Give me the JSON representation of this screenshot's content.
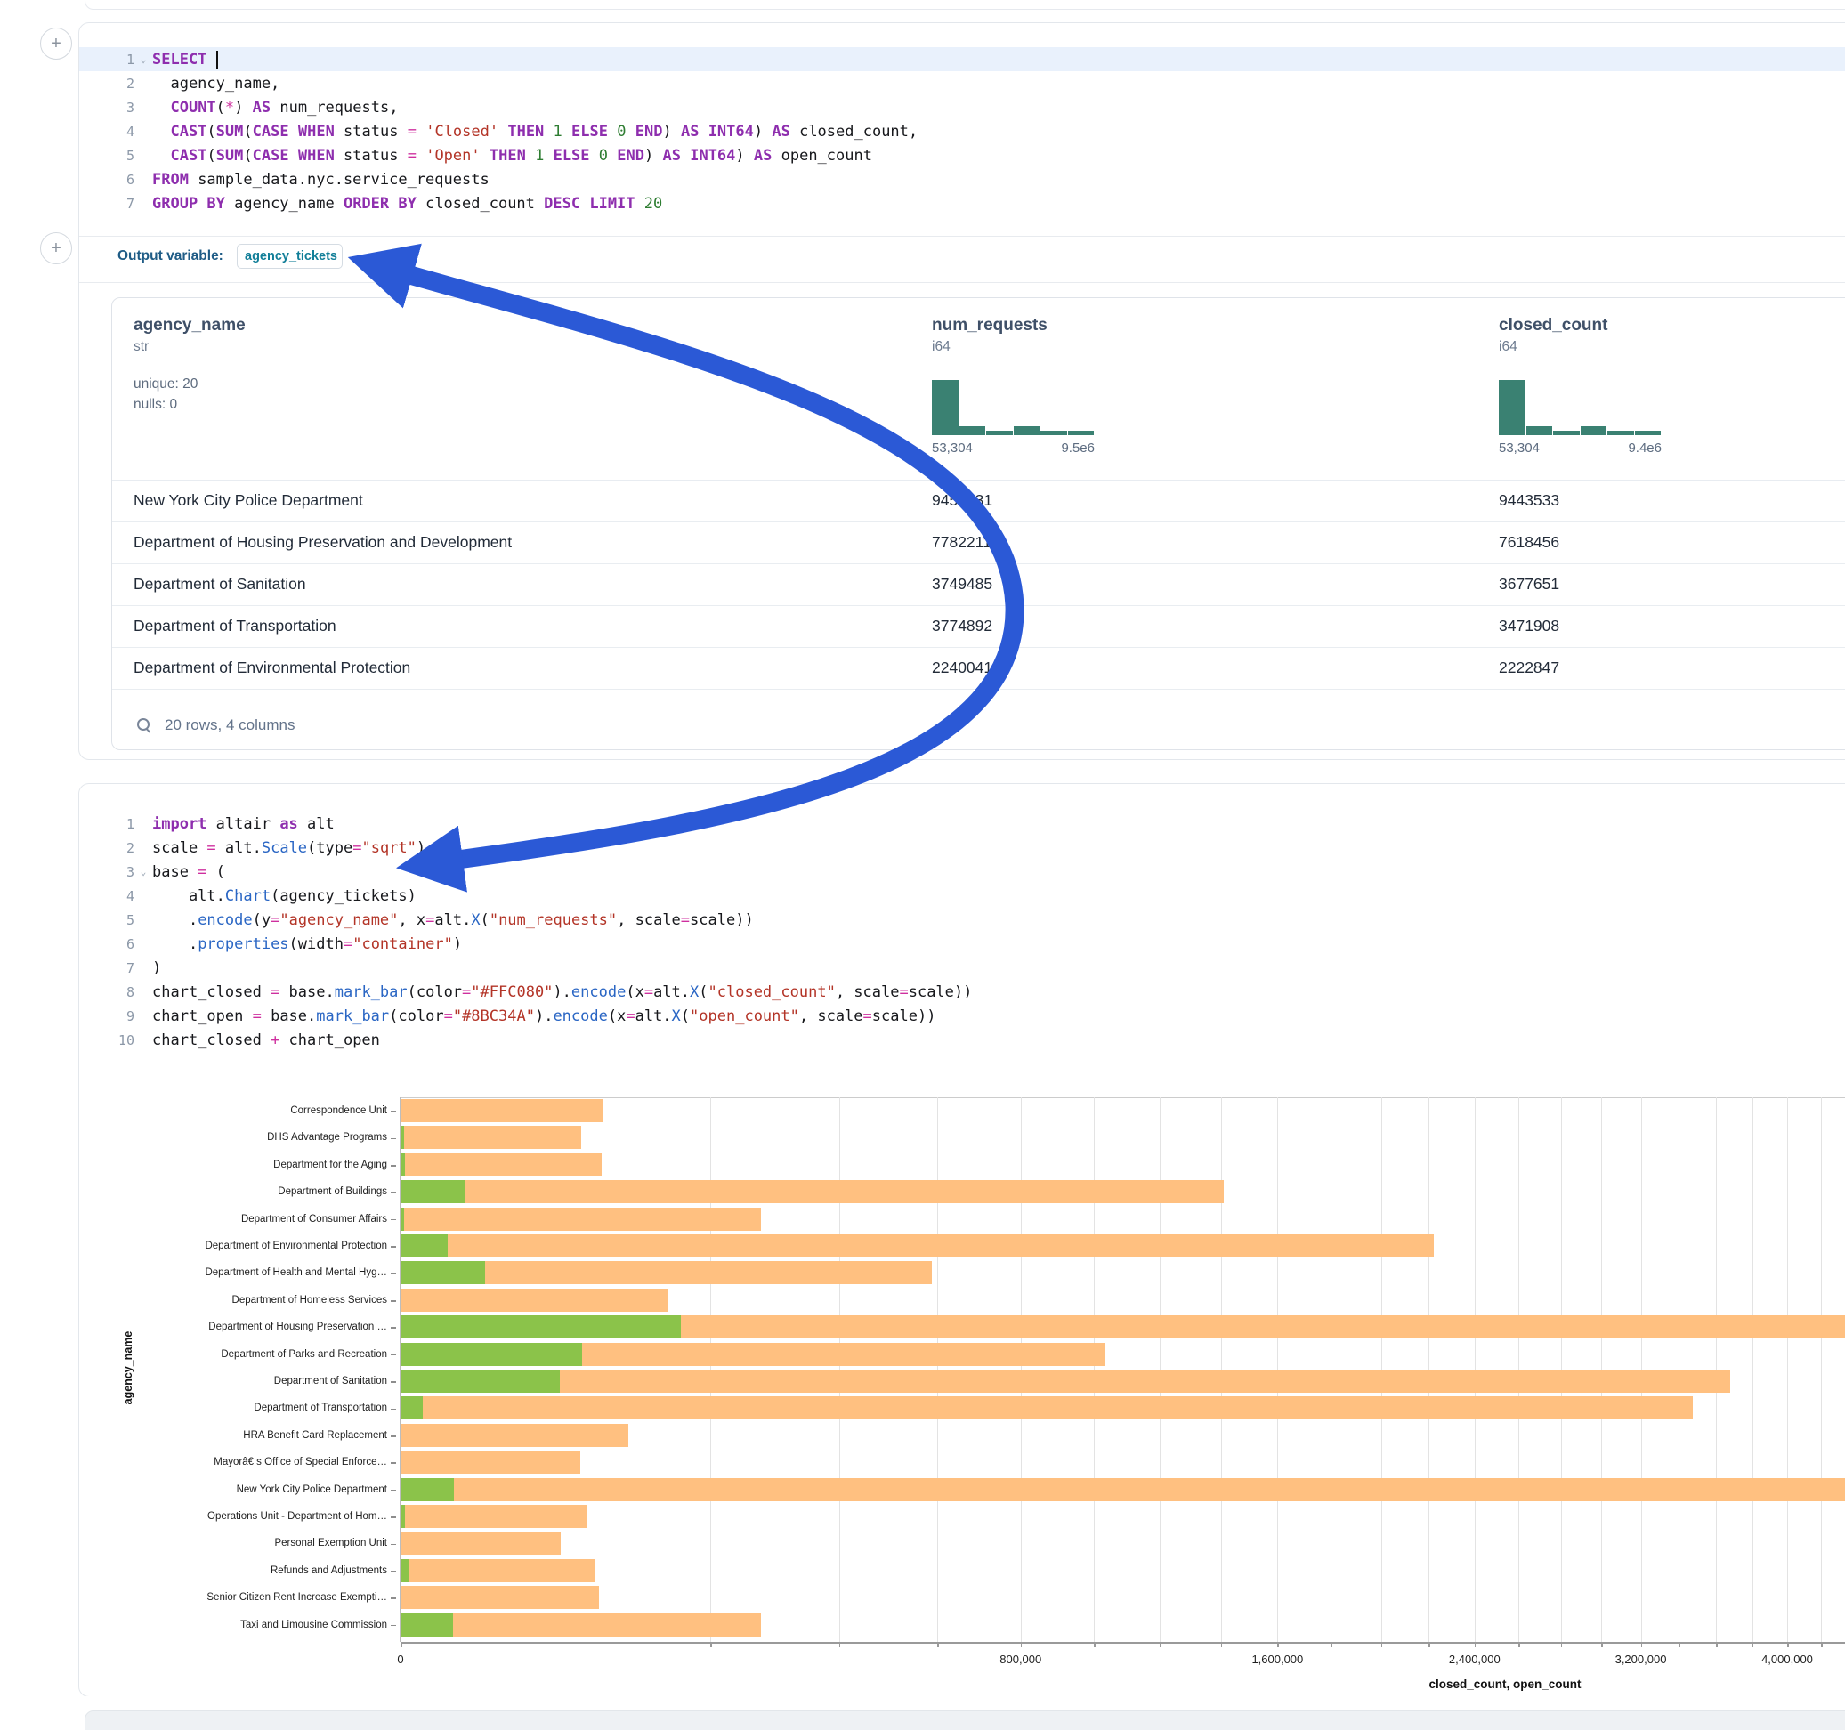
{
  "icons": {
    "plus": "+",
    "fold_chevron": "⌄",
    "search": "magnifier"
  },
  "annotation": {
    "arrow_color": "#2b59d6"
  },
  "sql_cell": {
    "output_variable": {
      "label": "Output variable:",
      "value": "agency_tickets"
    },
    "lines": [
      {
        "n": 1,
        "active": true,
        "fold": true,
        "tokens": [
          [
            "k",
            "SELECT"
          ],
          [
            "d",
            " "
          ],
          [
            "cur",
            ""
          ]
        ]
      },
      {
        "n": 2,
        "tokens": [
          [
            "d",
            "  agency_name,"
          ]
        ]
      },
      {
        "n": 3,
        "tokens": [
          [
            "d",
            "  "
          ],
          [
            "k",
            "COUNT"
          ],
          [
            "d",
            "("
          ],
          [
            "o",
            "*"
          ],
          [
            "d",
            ") "
          ],
          [
            "k",
            "AS"
          ],
          [
            "d",
            " num_requests,"
          ]
        ]
      },
      {
        "n": 4,
        "tokens": [
          [
            "d",
            "  "
          ],
          [
            "k",
            "CAST"
          ],
          [
            "d",
            "("
          ],
          [
            "k",
            "SUM"
          ],
          [
            "d",
            "("
          ],
          [
            "k",
            "CASE"
          ],
          [
            "d",
            " "
          ],
          [
            "k",
            "WHEN"
          ],
          [
            "d",
            " status "
          ],
          [
            "o",
            "="
          ],
          [
            "d",
            " "
          ],
          [
            "s",
            "'Closed'"
          ],
          [
            "d",
            " "
          ],
          [
            "k",
            "THEN"
          ],
          [
            "d",
            " "
          ],
          [
            "n",
            "1"
          ],
          [
            "d",
            " "
          ],
          [
            "k",
            "ELSE"
          ],
          [
            "d",
            " "
          ],
          [
            "n",
            "0"
          ],
          [
            "d",
            " "
          ],
          [
            "k",
            "END"
          ],
          [
            "d",
            ") "
          ],
          [
            "k",
            "AS"
          ],
          [
            "d",
            " "
          ],
          [
            "k",
            "INT64"
          ],
          [
            "d",
            ") "
          ],
          [
            "k",
            "AS"
          ],
          [
            "d",
            " closed_count,"
          ]
        ]
      },
      {
        "n": 5,
        "tokens": [
          [
            "d",
            "  "
          ],
          [
            "k",
            "CAST"
          ],
          [
            "d",
            "("
          ],
          [
            "k",
            "SUM"
          ],
          [
            "d",
            "("
          ],
          [
            "k",
            "CASE"
          ],
          [
            "d",
            " "
          ],
          [
            "k",
            "WHEN"
          ],
          [
            "d",
            " status "
          ],
          [
            "o",
            "="
          ],
          [
            "d",
            " "
          ],
          [
            "s",
            "'Open'"
          ],
          [
            "d",
            " "
          ],
          [
            "k",
            "THEN"
          ],
          [
            "d",
            " "
          ],
          [
            "n",
            "1"
          ],
          [
            "d",
            " "
          ],
          [
            "k",
            "ELSE"
          ],
          [
            "d",
            " "
          ],
          [
            "n",
            "0"
          ],
          [
            "d",
            " "
          ],
          [
            "k",
            "END"
          ],
          [
            "d",
            ") "
          ],
          [
            "k",
            "AS"
          ],
          [
            "d",
            " "
          ],
          [
            "k",
            "INT64"
          ],
          [
            "d",
            ") "
          ],
          [
            "k",
            "AS"
          ],
          [
            "d",
            " open_count"
          ]
        ]
      },
      {
        "n": 6,
        "tokens": [
          [
            "k",
            "FROM"
          ],
          [
            "d",
            " sample_data.nyc.service_requests"
          ]
        ]
      },
      {
        "n": 7,
        "tokens": [
          [
            "k",
            "GROUP BY"
          ],
          [
            "d",
            " agency_name "
          ],
          [
            "k",
            "ORDER BY"
          ],
          [
            "d",
            " closed_count "
          ],
          [
            "k",
            "DESC"
          ],
          [
            "d",
            " "
          ],
          [
            "k",
            "LIMIT"
          ],
          [
            "d",
            " "
          ],
          [
            "n",
            "20"
          ]
        ]
      }
    ]
  },
  "table": {
    "columns": [
      {
        "name": "agency_name",
        "type": "str",
        "stats": [
          "unique: 20",
          "nulls: 0"
        ]
      },
      {
        "name": "num_requests",
        "type": "i64",
        "hist": [
          13,
          2,
          1,
          2,
          1,
          1
        ],
        "range_min": "53,304",
        "range_max": "9.5e6"
      },
      {
        "name": "closed_count",
        "type": "i64",
        "hist": [
          13,
          2,
          1,
          2,
          1,
          1
        ],
        "range_min": "53,304",
        "range_max": "9.4e6"
      }
    ],
    "rows": [
      {
        "agency_name": "New York City Police Department",
        "num_requests": "9453131",
        "closed_count": "9443533"
      },
      {
        "agency_name": "Department of Housing Preservation and Development",
        "num_requests": "7782211",
        "closed_count": "7618456"
      },
      {
        "agency_name": "Department of Sanitation",
        "num_requests": "3749485",
        "closed_count": "3677651"
      },
      {
        "agency_name": "Department of Transportation",
        "num_requests": "3774892",
        "closed_count": "3471908"
      },
      {
        "agency_name": "Department of Environmental Protection",
        "num_requests": "2240041",
        "closed_count": "2222847"
      }
    ],
    "footer": "20 rows, 4 columns"
  },
  "python_cell": {
    "lines": [
      {
        "n": 1,
        "tokens": [
          [
            "k",
            "import"
          ],
          [
            "d",
            " altair "
          ],
          [
            "k",
            "as"
          ],
          [
            "d",
            " alt"
          ]
        ]
      },
      {
        "n": 2,
        "tokens": [
          [
            "d",
            "scale "
          ],
          [
            "o",
            "="
          ],
          [
            "d",
            " alt."
          ],
          [
            "f",
            "Scale"
          ],
          [
            "d",
            "(type"
          ],
          [
            "o",
            "="
          ],
          [
            "s",
            "\"sqrt\""
          ],
          [
            "d",
            ")"
          ]
        ]
      },
      {
        "n": 3,
        "fold": true,
        "tokens": [
          [
            "d",
            "base "
          ],
          [
            "o",
            "="
          ],
          [
            "d",
            " ("
          ]
        ]
      },
      {
        "n": 4,
        "tokens": [
          [
            "d",
            "    alt."
          ],
          [
            "f",
            "Chart"
          ],
          [
            "d",
            "(agency_tickets)"
          ]
        ]
      },
      {
        "n": 5,
        "tokens": [
          [
            "d",
            "    ."
          ],
          [
            "f",
            "encode"
          ],
          [
            "d",
            "(y"
          ],
          [
            "o",
            "="
          ],
          [
            "s",
            "\"agency_name\""
          ],
          [
            "d",
            ", x"
          ],
          [
            "o",
            "="
          ],
          [
            "d",
            "alt."
          ],
          [
            "f",
            "X"
          ],
          [
            "d",
            "("
          ],
          [
            "s",
            "\"num_requests\""
          ],
          [
            "d",
            ", scale"
          ],
          [
            "o",
            "="
          ],
          [
            "d",
            "scale))"
          ]
        ]
      },
      {
        "n": 6,
        "tokens": [
          [
            "d",
            "    ."
          ],
          [
            "f",
            "properties"
          ],
          [
            "d",
            "(width"
          ],
          [
            "o",
            "="
          ],
          [
            "s",
            "\"container\""
          ],
          [
            "d",
            ")"
          ]
        ]
      },
      {
        "n": 7,
        "tokens": [
          [
            "d",
            ")"
          ]
        ]
      },
      {
        "n": 8,
        "tokens": [
          [
            "d",
            "chart_closed "
          ],
          [
            "o",
            "="
          ],
          [
            "d",
            " base."
          ],
          [
            "f",
            "mark_bar"
          ],
          [
            "d",
            "(color"
          ],
          [
            "o",
            "="
          ],
          [
            "s",
            "\"#FFC080\""
          ],
          [
            "d",
            ")."
          ],
          [
            "f",
            "encode"
          ],
          [
            "d",
            "(x"
          ],
          [
            "o",
            "="
          ],
          [
            "d",
            "alt."
          ],
          [
            "f",
            "X"
          ],
          [
            "d",
            "("
          ],
          [
            "s",
            "\"closed_count\""
          ],
          [
            "d",
            ", scale"
          ],
          [
            "o",
            "="
          ],
          [
            "d",
            "scale))"
          ]
        ]
      },
      {
        "n": 9,
        "tokens": [
          [
            "d",
            "chart_open "
          ],
          [
            "o",
            "="
          ],
          [
            "d",
            " base."
          ],
          [
            "f",
            "mark_bar"
          ],
          [
            "d",
            "(color"
          ],
          [
            "o",
            "="
          ],
          [
            "s",
            "\"#8BC34A\""
          ],
          [
            "d",
            ")."
          ],
          [
            "f",
            "encode"
          ],
          [
            "d",
            "(x"
          ],
          [
            "o",
            "="
          ],
          [
            "d",
            "alt."
          ],
          [
            "f",
            "X"
          ],
          [
            "d",
            "("
          ],
          [
            "s",
            "\"open_count\""
          ],
          [
            "d",
            ", scale"
          ],
          [
            "o",
            "="
          ],
          [
            "d",
            "scale))"
          ]
        ]
      },
      {
        "n": 10,
        "tokens": [
          [
            "d",
            "chart_closed "
          ],
          [
            "o",
            "+"
          ],
          [
            "d",
            " chart_open"
          ]
        ]
      }
    ]
  },
  "chart_data": {
    "type": "bar",
    "orientation": "horizontal",
    "layered": true,
    "x_scale": "sqrt",
    "grid": true,
    "gridline_step": 200000,
    "xlabel": "closed_count, open_count",
    "ylabel": "agency_name",
    "x_ticks": [
      0,
      800000,
      1600000,
      2400000,
      3200000,
      4000000
    ],
    "series": [
      {
        "name": "closed_count",
        "color": "#FFC080"
      },
      {
        "name": "open_count",
        "color": "#8BC34A"
      }
    ],
    "categories": [
      "Correspondence Unit",
      "DHS Advantage Programs",
      "Department for the Aging",
      "Department of Buildings",
      "Department of Consumer Affairs",
      "Department of Environmental Protection",
      "Department of Health and Mental Hyg…",
      "Department of Homeless Services",
      "Department of Housing Preservation …",
      "Department of Parks and Recreation",
      "Department of Sanitation",
      "Department of Transportation",
      "HRA Benefit Card Replacement",
      "Mayorâ€  s Office of Special Enforce…",
      "New York City Police Department",
      "Operations Unit - Department of Hom…",
      "Personal Exemption Unit",
      "Refunds and Adjustments",
      "Senior Citizen Rent Increase Exempti…",
      "Taxi and Limousine Commission"
    ],
    "closed_values": [
      86000,
      68000,
      84000,
      1410000,
      270000,
      2222847,
      588000,
      148000,
      7618456,
      1030000,
      3677651,
      3471908,
      108000,
      67000,
      9443533,
      71800,
      53304,
      78000,
      81700,
      270000
    ],
    "open_values": [
      0,
      30,
      40,
      8800,
      25,
      4600,
      15000,
      0,
      163755,
      68400,
      53000,
      1000,
      0,
      0,
      6000,
      40,
      0,
      150,
      0,
      5700
    ]
  },
  "colors": {
    "keyword": "#8e2eae",
    "operator": "#cf2f9f",
    "string": "#b33427",
    "number": "#2e7d32",
    "function": "#2a66c4",
    "code_default": "#17181c",
    "line_number": "#8c98a8",
    "active_line_bg": "#e9f1fc",
    "histogram": "#3a8172",
    "output_label": "#1f5c86",
    "pill_text": "#117e98"
  }
}
